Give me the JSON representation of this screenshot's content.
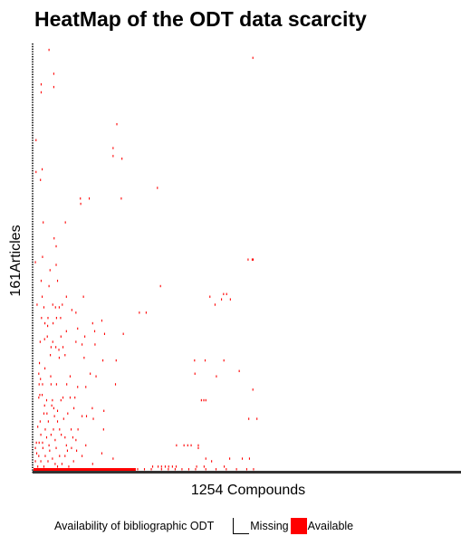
{
  "chart_data": {
    "type": "heatmap",
    "title": "HeatMap of the ODT data scarcity",
    "xlabel": "1254 Compounds",
    "ylabel": "161Articles",
    "n_compounds": 1254,
    "n_articles": 161,
    "legend": {
      "title": "Availability of bibliographic ODT",
      "placement": "bottom",
      "entries": [
        {
          "label": "Missing",
          "color": "#ffffff"
        },
        {
          "label": "Available",
          "color": "#ff0000"
        }
      ]
    },
    "available_cells": [
      [
        45,
        159
      ],
      [
        643,
        156
      ],
      [
        59,
        150
      ],
      [
        59,
        145
      ],
      [
        22,
        146
      ],
      [
        22,
        143
      ],
      [
        244,
        131
      ],
      [
        233,
        122
      ],
      [
        259,
        118
      ],
      [
        233,
        119
      ],
      [
        7,
        125
      ],
      [
        25,
        114
      ],
      [
        7,
        113
      ],
      [
        20,
        110
      ],
      [
        363,
        107
      ],
      [
        137,
        103
      ],
      [
        163,
        103
      ],
      [
        257,
        103
      ],
      [
        138,
        101
      ],
      [
        93,
        94
      ],
      [
        28,
        94
      ],
      [
        60,
        88
      ],
      [
        66,
        85
      ],
      [
        26,
        81
      ],
      [
        629,
        80
      ],
      [
        641,
        80
      ],
      [
        644,
        80
      ],
      [
        5,
        79
      ],
      [
        66,
        78
      ],
      [
        48,
        76
      ],
      [
        22,
        72
      ],
      [
        70,
        72
      ],
      [
        45,
        70
      ],
      [
        372,
        70
      ],
      [
        557,
        67
      ],
      [
        566,
        67
      ],
      [
        517,
        66
      ],
      [
        551,
        65
      ],
      [
        577,
        65
      ],
      [
        25,
        66
      ],
      [
        96,
        66
      ],
      [
        146,
        66
      ],
      [
        84,
        63
      ],
      [
        56,
        63
      ],
      [
        10,
        63
      ],
      [
        532,
        63
      ],
      [
        75,
        62
      ],
      [
        64,
        62
      ],
      [
        30,
        62
      ],
      [
        112,
        61
      ],
      [
        124,
        60
      ],
      [
        310,
        60
      ],
      [
        330,
        60
      ],
      [
        67,
        58
      ],
      [
        79,
        58
      ],
      [
        42,
        58
      ],
      [
        23,
        58
      ],
      [
        200,
        57
      ],
      [
        173,
        56
      ],
      [
        33,
        56
      ],
      [
        57,
        56
      ],
      [
        41,
        55
      ],
      [
        96,
        53
      ],
      [
        129,
        54
      ],
      [
        179,
        53
      ],
      [
        208,
        52
      ],
      [
        263,
        52
      ],
      [
        150,
        51
      ],
      [
        80,
        51
      ],
      [
        32,
        50
      ],
      [
        40,
        51
      ],
      [
        56,
        49
      ],
      [
        124,
        49
      ],
      [
        142,
        48
      ],
      [
        180,
        48
      ],
      [
        19,
        49
      ],
      [
        65,
        47
      ],
      [
        74,
        46
      ],
      [
        86,
        47
      ],
      [
        51,
        47
      ],
      [
        49,
        44
      ],
      [
        75,
        43
      ],
      [
        92,
        44
      ],
      [
        148,
        43
      ],
      [
        203,
        42
      ],
      [
        242,
        42
      ],
      [
        472,
        42
      ],
      [
        503,
        42
      ],
      [
        558,
        42
      ],
      [
        17,
        41
      ],
      [
        33,
        39
      ],
      [
        15,
        37
      ],
      [
        20,
        35
      ],
      [
        50,
        36
      ],
      [
        183,
        36
      ],
      [
        107,
        36
      ],
      [
        166,
        37
      ],
      [
        473,
        37
      ],
      [
        536,
        36
      ],
      [
        603,
        38
      ],
      [
        16,
        33
      ],
      [
        26,
        33
      ],
      [
        51,
        33
      ],
      [
        67,
        33
      ],
      [
        97,
        33
      ],
      [
        129,
        32
      ],
      [
        153,
        32
      ],
      [
        240,
        33
      ],
      [
        643,
        31
      ],
      [
        492,
        27
      ],
      [
        499,
        27
      ],
      [
        505,
        27
      ],
      [
        15,
        28
      ],
      [
        25,
        29
      ],
      [
        18,
        29
      ],
      [
        38,
        27
      ],
      [
        55,
        27
      ],
      [
        80,
        27
      ],
      [
        86,
        28
      ],
      [
        107,
        28
      ],
      [
        121,
        28
      ],
      [
        32,
        25
      ],
      [
        53,
        25
      ],
      [
        59,
        24
      ],
      [
        70,
        23
      ],
      [
        118,
        24
      ],
      [
        172,
        24
      ],
      [
        206,
        23
      ],
      [
        30,
        22
      ],
      [
        39,
        22
      ],
      [
        61,
        21
      ],
      [
        70,
        19
      ],
      [
        88,
        20
      ],
      [
        100,
        22
      ],
      [
        142,
        21
      ],
      [
        155,
        21
      ],
      [
        175,
        20
      ],
      [
        631,
        20
      ],
      [
        655,
        20
      ],
      [
        19,
        19
      ],
      [
        43,
        19
      ],
      [
        76,
        16
      ],
      [
        12,
        17
      ],
      [
        34,
        16
      ],
      [
        51,
        14
      ],
      [
        58,
        16
      ],
      [
        81,
        14
      ],
      [
        110,
        16
      ],
      [
        130,
        16
      ],
      [
        205,
        16
      ],
      [
        21,
        14
      ],
      [
        38,
        13
      ],
      [
        63,
        12
      ],
      [
        92,
        13
      ],
      [
        96,
        10
      ],
      [
        115,
        13
      ],
      [
        124,
        12
      ],
      [
        8,
        11
      ],
      [
        16,
        11
      ],
      [
        26,
        11
      ],
      [
        45,
        10
      ],
      [
        5,
        9
      ],
      [
        27,
        9
      ],
      [
        47,
        8
      ],
      [
        66,
        9
      ],
      [
        99,
        8
      ],
      [
        111,
        9
      ],
      [
        126,
        8
      ],
      [
        153,
        10
      ],
      [
        419,
        10
      ],
      [
        441,
        10
      ],
      [
        452,
        10
      ],
      [
        462,
        10
      ],
      [
        483,
        9
      ],
      [
        483,
        10
      ],
      [
        9,
        7
      ],
      [
        15,
        6
      ],
      [
        34,
        6
      ],
      [
        55,
        5
      ],
      [
        76,
        6
      ],
      [
        92,
        6
      ],
      [
        142,
        6
      ],
      [
        200,
        7
      ],
      [
        233,
        5
      ],
      [
        5,
        4
      ],
      [
        21,
        4
      ],
      [
        42,
        4
      ],
      [
        63,
        3
      ],
      [
        83,
        3
      ],
      [
        117,
        4
      ],
      [
        173,
        3
      ],
      [
        505,
        5
      ],
      [
        522,
        4
      ],
      [
        575,
        5
      ],
      [
        612,
        5
      ],
      [
        633,
        5
      ],
      [
        12,
        2
      ],
      [
        30,
        2
      ],
      [
        48,
        1
      ],
      [
        70,
        2
      ],
      [
        103,
        2
      ],
      [
        155,
        1
      ],
      [
        253,
        1
      ],
      [
        349,
        2
      ],
      [
        365,
        2
      ],
      [
        375,
        2
      ],
      [
        386,
        2
      ],
      [
        396,
        2
      ],
      [
        407,
        2
      ],
      [
        418,
        2
      ],
      [
        478,
        2
      ],
      [
        500,
        2
      ],
      [
        559,
        2
      ],
      [
        5,
        1
      ],
      [
        15,
        1
      ],
      [
        25,
        1
      ],
      [
        35,
        1
      ],
      [
        45,
        1
      ],
      [
        55,
        1
      ],
      [
        65,
        1
      ],
      [
        75,
        1
      ],
      [
        85,
        1
      ],
      [
        95,
        1
      ],
      [
        105,
        1
      ],
      [
        115,
        1
      ],
      [
        125,
        1
      ],
      [
        135,
        1
      ],
      [
        145,
        1
      ],
      [
        165,
        1
      ],
      [
        185,
        1
      ],
      [
        195,
        1
      ],
      [
        225,
        1
      ],
      [
        265,
        1
      ],
      [
        285,
        1
      ],
      [
        305,
        1
      ],
      [
        325,
        1
      ],
      [
        345,
        1
      ],
      [
        375,
        1
      ],
      [
        395,
        1
      ],
      [
        415,
        1
      ],
      [
        435,
        1
      ],
      [
        455,
        1
      ],
      [
        475,
        1
      ],
      [
        505,
        1
      ],
      [
        535,
        1
      ],
      [
        565,
        1
      ],
      [
        595,
        1
      ],
      [
        625,
        1
      ],
      [
        645,
        1
      ]
    ]
  }
}
